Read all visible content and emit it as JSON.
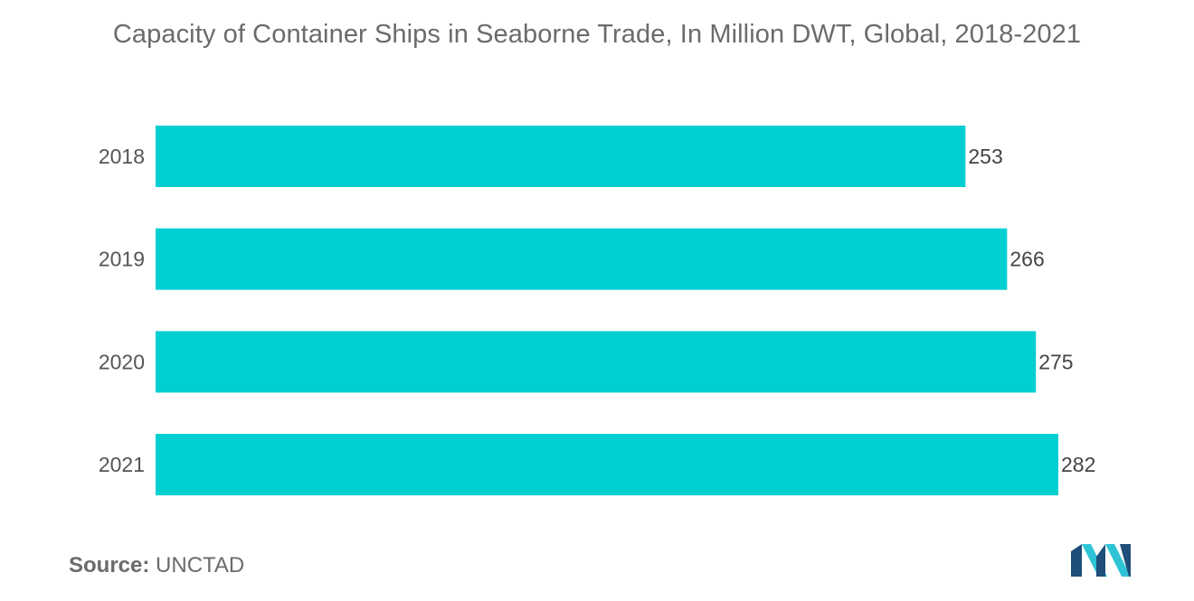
{
  "chart_data": {
    "type": "bar",
    "orientation": "horizontal",
    "title": "Capacity of Container Ships in Seaborne Trade, In Million DWT, Global,  2018-2021",
    "categories": [
      "2018",
      "2019",
      "2020",
      "2021"
    ],
    "values": [
      253,
      266,
      275,
      282
    ],
    "data_labels": [
      "253",
      "266",
      "275",
      "282"
    ],
    "xlabel": "",
    "ylabel": "",
    "xlim": [
      0,
      282
    ],
    "grid": false,
    "legend": "none",
    "bar_color": "#00cfd1"
  },
  "footer": {
    "source_label": "Source:",
    "source_value": "UNCTAD"
  },
  "logo": {
    "icon": "mordor-intelligence-logo",
    "colors": [
      "#1e4e79",
      "#2ec4d6"
    ]
  }
}
